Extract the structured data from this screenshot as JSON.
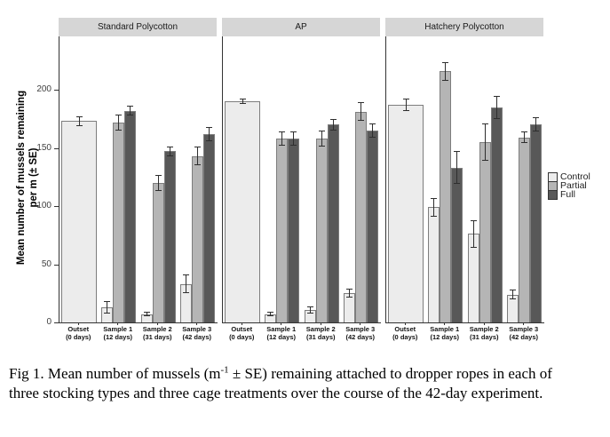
{
  "chart_data": {
    "type": "bar",
    "title": "",
    "ylabel_lines": [
      "Mean number of mussels remaining",
      "per m (± SE)"
    ],
    "yticks": [
      0,
      50,
      100,
      150,
      200
    ],
    "ylim": [
      0,
      245
    ],
    "grid": false,
    "legend_position": "right",
    "categories": [
      [
        "Outset",
        "(0 days)"
      ],
      [
        "Sample 1",
        "(12 days)"
      ],
      [
        "Sample 2",
        "(31 days)"
      ],
      [
        "Sample 3",
        "(42 days)"
      ]
    ],
    "series": [
      {
        "name": "Control",
        "color": "#ececec"
      },
      {
        "name": "Partial",
        "color": "#b5b5b5"
      },
      {
        "name": "Full",
        "color": "#585858"
      }
    ],
    "facets": [
      {
        "label": "Standard Polycotton",
        "values": [
          [
            {
              "series": "Control",
              "mean": 173,
              "se": 4
            }
          ],
          [
            {
              "series": "Control",
              "mean": 13,
              "se": 5
            },
            {
              "series": "Partial",
              "mean": 172,
              "se": 7
            },
            {
              "series": "Full",
              "mean": 182,
              "se": 4
            }
          ],
          [
            {
              "series": "Control",
              "mean": 7,
              "se": 2
            },
            {
              "series": "Partial",
              "mean": 120,
              "se": 7
            },
            {
              "series": "Full",
              "mean": 147,
              "se": 4
            }
          ],
          [
            {
              "series": "Control",
              "mean": 33,
              "se": 8
            },
            {
              "series": "Partial",
              "mean": 143,
              "se": 8
            },
            {
              "series": "Full",
              "mean": 162,
              "se": 6
            }
          ]
        ]
      },
      {
        "label": "AP",
        "values": [
          [
            {
              "series": "Control",
              "mean": 190,
              "se": 2
            }
          ],
          [
            {
              "series": "Control",
              "mean": 7,
              "se": 2
            },
            {
              "series": "Partial",
              "mean": 158,
              "se": 6
            },
            {
              "series": "Full",
              "mean": 158,
              "se": 6
            }
          ],
          [
            {
              "series": "Control",
              "mean": 11,
              "se": 3
            },
            {
              "series": "Partial",
              "mean": 158,
              "se": 7
            },
            {
              "series": "Full",
              "mean": 170,
              "se": 5
            }
          ],
          [
            {
              "series": "Control",
              "mean": 25,
              "se": 4
            },
            {
              "series": "Partial",
              "mean": 181,
              "se": 8
            },
            {
              "series": "Full",
              "mean": 165,
              "se": 6
            }
          ]
        ]
      },
      {
        "label": "Hatchery Polycotton",
        "values": [
          [
            {
              "series": "Control",
              "mean": 187,
              "se": 5
            }
          ],
          [
            {
              "series": "Control",
              "mean": 99,
              "se": 8
            },
            {
              "series": "Partial",
              "mean": 216,
              "se": 8
            },
            {
              "series": "Full",
              "mean": 133,
              "se": 14
            }
          ],
          [
            {
              "series": "Control",
              "mean": 76,
              "se": 12
            },
            {
              "series": "Partial",
              "mean": 155,
              "se": 16
            },
            {
              "series": "Full",
              "mean": 185,
              "se": 10
            }
          ],
          [
            {
              "series": "Control",
              "mean": 24,
              "se": 4
            },
            {
              "series": "Partial",
              "mean": 159,
              "se": 5
            },
            {
              "series": "Full",
              "mean": 170,
              "se": 6
            }
          ]
        ]
      }
    ]
  },
  "caption": {
    "part1": "Fig 1. Mean number of mussels (m",
    "sup": "-1",
    "part2": " ± SE) remaining attached to dropper ropes in each of three stocking types and three cage treatments over the course of the 42-day experiment."
  },
  "colors": {
    "strip_bg": "#d6d6d6",
    "axis": "#333333",
    "error_bar": "#2e2e2e",
    "bar_border": "#7d7d7d"
  }
}
